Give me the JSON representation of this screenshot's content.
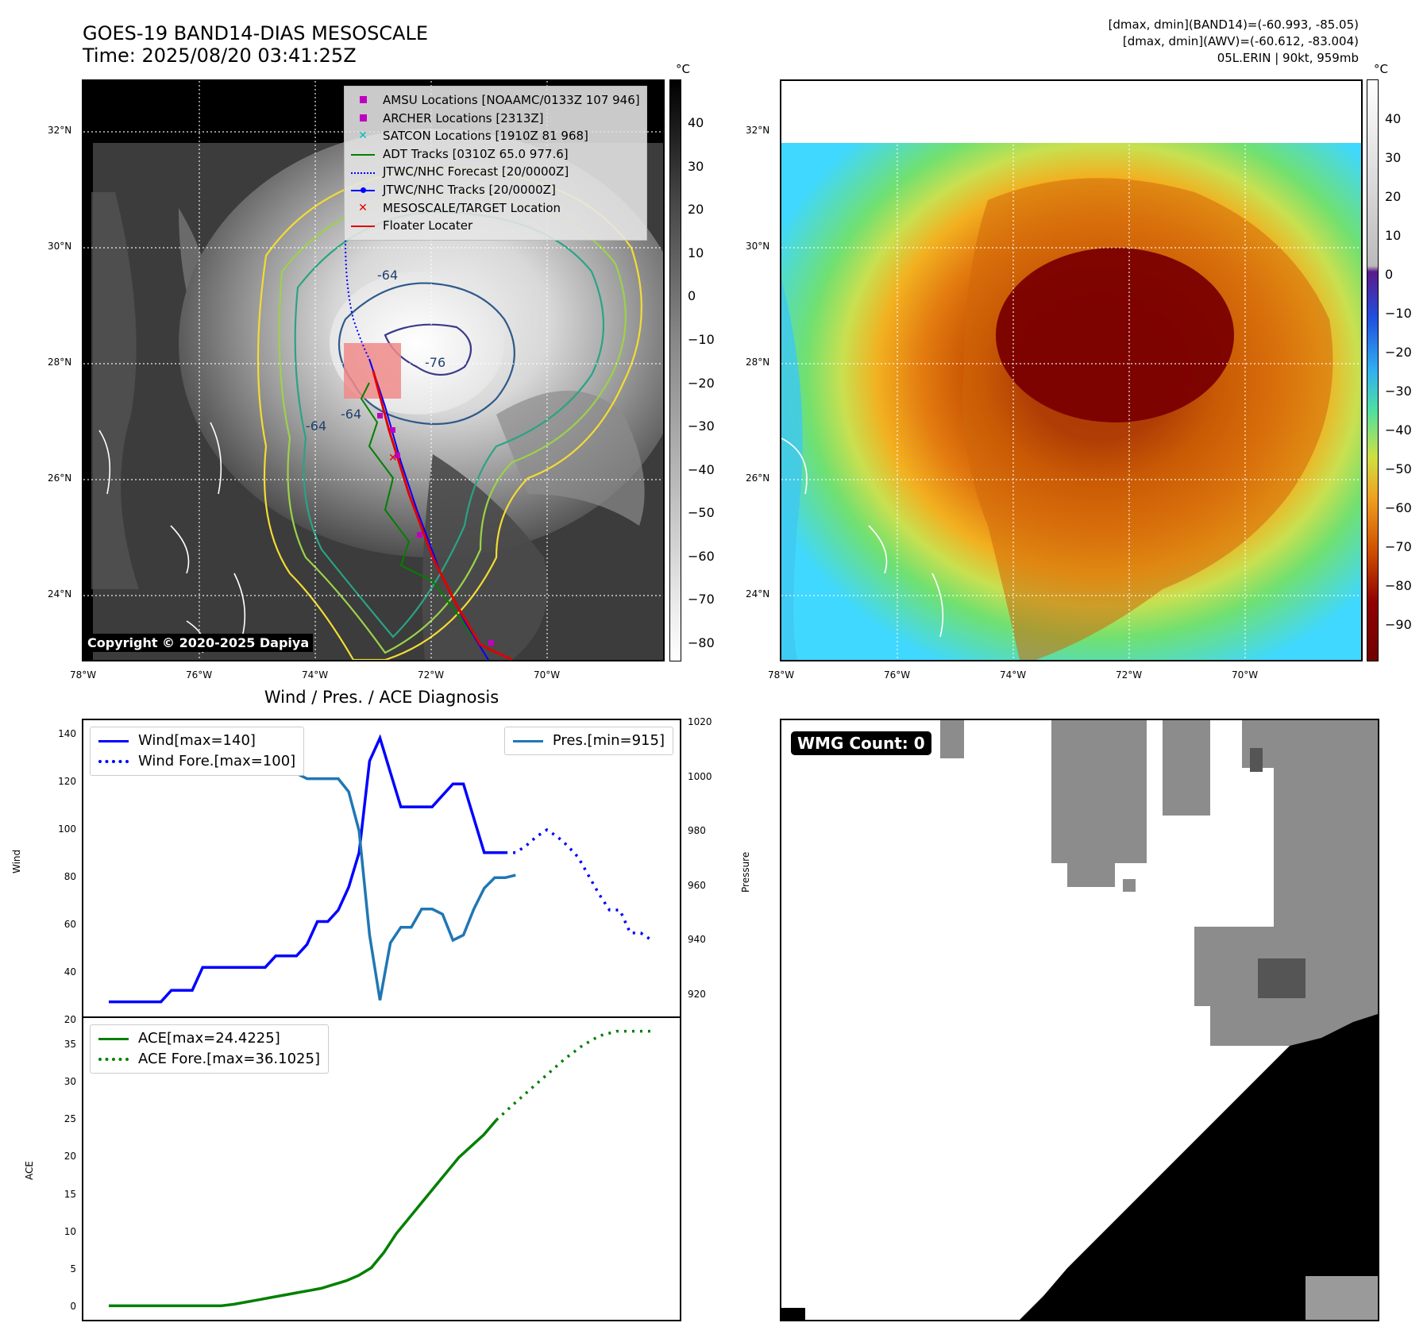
{
  "header": {
    "title_line1": "GOES-19 BAND14-DIAS MESOSCALE",
    "title_line2": "Time: 2025/08/20 03:41:25Z",
    "info_line1": "[dmax, dmin](BAND14)=(-60.993, -85.05)",
    "info_line2": "[dmax, dmin](AWV)=(-60.612, -83.004)",
    "info_line3": "05L.ERIN | 90kt, 959mb"
  },
  "map_axes": {
    "lat_labels": [
      "32°N",
      "30°N",
      "28°N",
      "26°N",
      "24°N"
    ],
    "lon_labels": [
      "78°W",
      "76°W",
      "74°W",
      "72°W",
      "70°W"
    ]
  },
  "left_map": {
    "copyright": "Copyright © 2020-2025 Dapiya",
    "contour_labels": [
      "-64",
      "-76",
      "-64",
      "-64"
    ],
    "legend": [
      {
        "label": "AMSU Locations [NOAAMC/0133Z 107 946]",
        "symbol": "square",
        "color": "#c000c0"
      },
      {
        "label": "ARCHER Locations [2313Z]",
        "symbol": "square",
        "color": "#c000c0"
      },
      {
        "label": "SATCON Locations [1910Z 81 968]",
        "symbol": "x",
        "color": "#00c0c0"
      },
      {
        "label": "ADT Tracks [0310Z 65.0 977.6]",
        "symbol": "line",
        "color": "#008000"
      },
      {
        "label": "JTWC/NHC Forecast [20/0000Z]",
        "symbol": "dotted",
        "color": "#0000ff"
      },
      {
        "label": "JTWC/NHC Tracks [20/0000Z]",
        "symbol": "line-dot",
        "color": "#0000ff"
      },
      {
        "label": "MESOSCALE/TARGET Location",
        "symbol": "x",
        "color": "#e00000"
      },
      {
        "label": "Floater Locater",
        "symbol": "line",
        "color": "#e00000"
      }
    ],
    "colorbar": {
      "unit": "°C",
      "ticks": [
        "40",
        "30",
        "20",
        "10",
        "0",
        "−10",
        "−20",
        "−30",
        "−40",
        "−50",
        "−60",
        "−70",
        "−80"
      ]
    }
  },
  "right_map": {
    "colorbar": {
      "unit": "°C",
      "ticks": [
        "40",
        "30",
        "20",
        "10",
        "0",
        "−10",
        "−20",
        "−30",
        "−40",
        "−50",
        "−60",
        "−70",
        "−80",
        "−90"
      ]
    }
  },
  "wmg": {
    "label": "WMG Count: 0"
  },
  "chart_data": [
    {
      "type": "line",
      "title": "Wind / Pres. / ACE Diagnosis",
      "ylabel": "Wind",
      "ylabel_right": "Pressure",
      "ylim": [
        20,
        145
      ],
      "ylim_right": [
        910,
        1020
      ],
      "yticks": [
        "140",
        "120",
        "100",
        "80",
        "60",
        "40",
        "20"
      ],
      "yticks_right": [
        "1020",
        "1000",
        "980",
        "960",
        "940",
        "920"
      ],
      "series": [
        {
          "name": "Wind[max=140]",
          "color": "#0000ff",
          "style": "solid",
          "values": [
            25,
            25,
            25,
            25,
            25,
            25,
            30,
            30,
            30,
            40,
            40,
            40,
            40,
            40,
            40,
            40,
            45,
            45,
            45,
            50,
            60,
            60,
            65,
            75,
            90,
            130,
            140,
            125,
            110,
            110,
            110,
            110,
            115,
            120,
            120,
            105,
            90,
            90,
            90
          ]
        },
        {
          "name": "Wind Fore.[max=100]",
          "color": "#0000ff",
          "style": "dotted",
          "values": [
            null,
            null,
            null,
            null,
            null,
            null,
            null,
            null,
            null,
            null,
            null,
            null,
            null,
            null,
            null,
            null,
            null,
            null,
            null,
            null,
            null,
            null,
            null,
            null,
            null,
            null,
            null,
            null,
            null,
            null,
            null,
            null,
            null,
            null,
            null,
            null,
            null,
            null,
            90,
            90,
            93,
            97,
            100,
            97,
            93,
            88,
            80,
            72,
            65,
            65,
            55,
            55,
            52
          ]
        },
        {
          "name": "Pres.[min=915]",
          "color": "#1f77b4",
          "style": "solid",
          "axis": "right",
          "values": [
            1015,
            1015,
            1010,
            1008,
            1008,
            1008,
            1006,
            1006,
            1006,
            1005,
            1005,
            1005,
            1004,
            1006,
            1004,
            1004,
            1002,
            1002,
            1002,
            1000,
            1000,
            1000,
            1000,
            995,
            980,
            940,
            915,
            937,
            943,
            943,
            950,
            950,
            948,
            938,
            940,
            950,
            958,
            962,
            962,
            963
          ]
        }
      ]
    },
    {
      "type": "line",
      "ylabel": "ACE",
      "ylim": [
        -1,
        37
      ],
      "yticks": [
        "35",
        "30",
        "25",
        "20",
        "15",
        "10",
        "5",
        "0"
      ],
      "series": [
        {
          "name": "ACE[max=24.4225]",
          "color": "#008000",
          "style": "solid",
          "values": [
            0,
            0,
            0,
            0,
            0,
            0,
            0,
            0,
            0,
            0,
            0.2,
            0.5,
            0.8,
            1.1,
            1.4,
            1.7,
            2.0,
            2.3,
            2.8,
            3.3,
            4.0,
            5.0,
            7.0,
            9.5,
            11.5,
            13.5,
            15.5,
            17.5,
            19.5,
            21.0,
            22.5,
            24.4225
          ]
        },
        {
          "name": "ACE Fore.[max=36.1025]",
          "color": "#008000",
          "style": "dotted",
          "values": [
            24.4225,
            26.5,
            28.5,
            30.5,
            32.5,
            34.2,
            35.5,
            36.1025,
            36.1025,
            36.1025
          ]
        }
      ]
    }
  ]
}
